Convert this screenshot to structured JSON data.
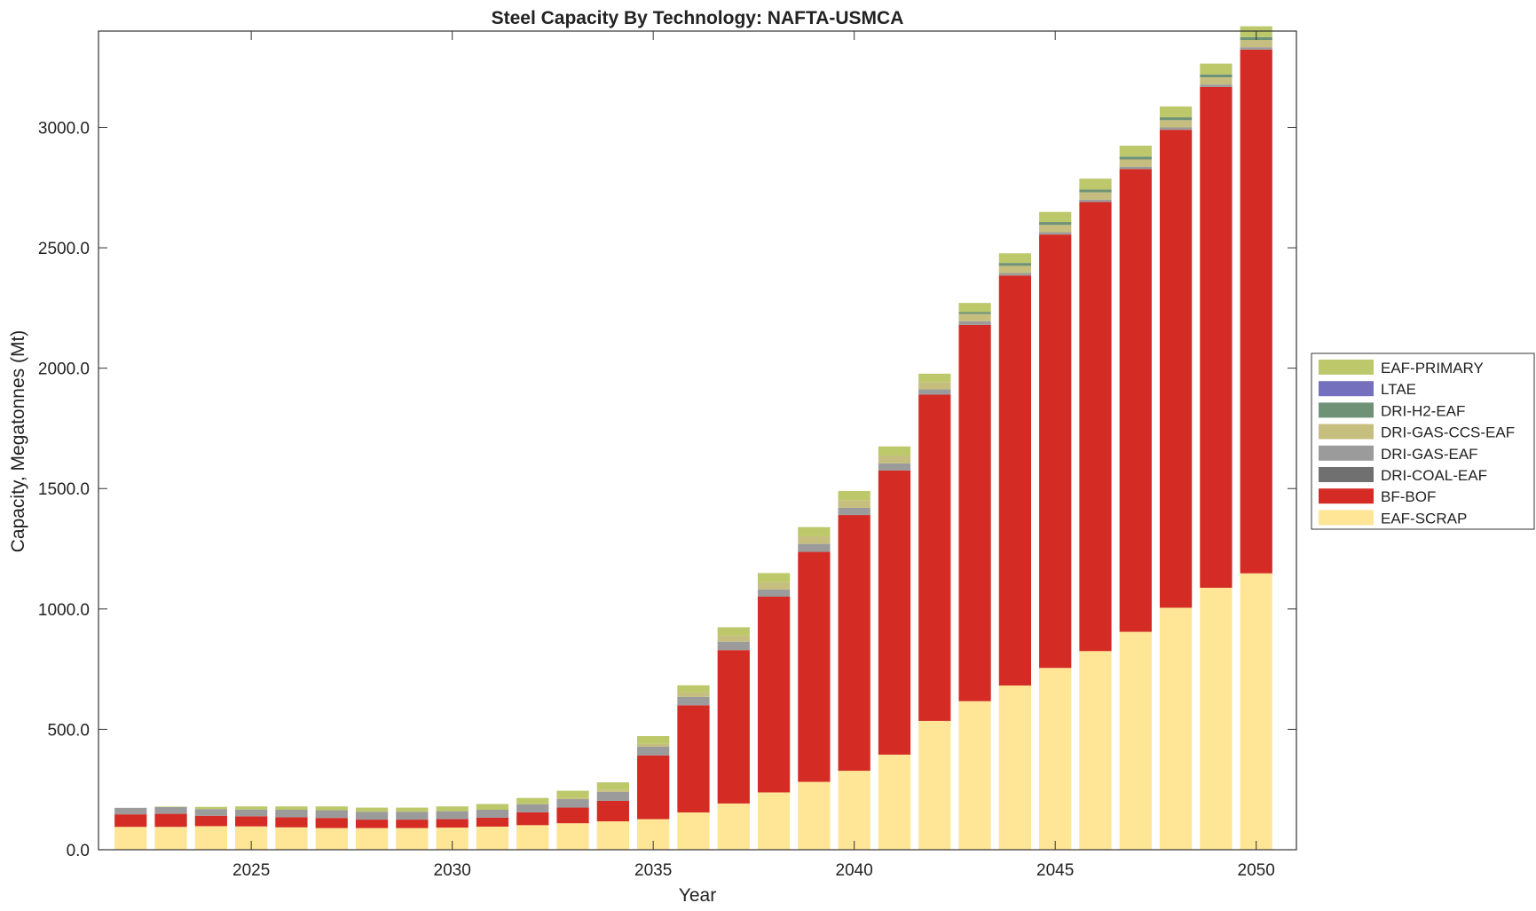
{
  "chart_data": {
    "type": "bar",
    "stacked": true,
    "title": "Steel Capacity By Technology: NAFTA-USMCA",
    "xlabel": "Year",
    "ylabel": "Capacity, Megatonnes (Mt)",
    "xlim": [
      2021.2,
      2051.0
    ],
    "ylim": [
      0,
      3400
    ],
    "xticks": [
      2025,
      2030,
      2035,
      2040,
      2045,
      2050
    ],
    "xtick_labels": [
      "2025",
      "2030",
      "2035",
      "2040",
      "2045",
      "2050"
    ],
    "yticks": [
      0,
      500,
      1000,
      1500,
      2000,
      2500,
      3000
    ],
    "ytick_labels": [
      "0.0",
      "500.0",
      "1000.0",
      "1500.0",
      "2000.0",
      "2500.0",
      "3000.0"
    ],
    "grid": false,
    "legend_position": "right",
    "categories": [
      2022,
      2023,
      2024,
      2025,
      2026,
      2027,
      2028,
      2029,
      2030,
      2031,
      2032,
      2033,
      2034,
      2035,
      2036,
      2037,
      2038,
      2039,
      2040,
      2041,
      2042,
      2043,
      2044,
      2045,
      2046,
      2047,
      2048,
      2049,
      2050
    ],
    "series": [
      {
        "name": "EAF-SCRAP",
        "color": "#FFE596",
        "values": [
          95,
          95,
          98,
          97,
          93,
          90,
          90,
          90,
          92,
          96,
          102,
          110,
          118,
          127,
          155,
          192,
          238,
          282,
          328,
          395,
          535,
          617,
          682,
          755,
          825,
          905,
          1005,
          1088,
          1148
        ]
      },
      {
        "name": "BF-BOF",
        "color": "#D42B24",
        "values": [
          52,
          54,
          43,
          42,
          42,
          42,
          35,
          35,
          35,
          37,
          53,
          65,
          85,
          265,
          445,
          637,
          813,
          955,
          1062,
          1180,
          1355,
          1563,
          1703,
          1800,
          1865,
          1922,
          1985,
          2080,
          2175
        ]
      },
      {
        "name": "DRI-COAL-EAF",
        "color": "#707070",
        "values": [
          0,
          0,
          0,
          0,
          0,
          0,
          0,
          0,
          0,
          0,
          0,
          0,
          0,
          0,
          0,
          0,
          0,
          0,
          0,
          0,
          0,
          0,
          0,
          0,
          0,
          0,
          0,
          0,
          0
        ]
      },
      {
        "name": "DRI-GAS-EAF",
        "color": "#9B9B9B",
        "values": [
          27,
          28,
          28,
          28,
          31,
          32,
          33,
          33,
          33,
          33,
          34,
          35,
          37,
          36,
          35,
          35,
          30,
          33,
          30,
          30,
          22,
          15,
          10,
          10,
          10,
          10,
          10,
          10,
          10
        ]
      },
      {
        "name": "DRI-GAS-CCS-EAF",
        "color": "#C6BE7E",
        "values": [
          0,
          0,
          0,
          0,
          0,
          0,
          0,
          0,
          0,
          0,
          0,
          5,
          8,
          12,
          18,
          25,
          30,
          32,
          32,
          32,
          30,
          30,
          30,
          30,
          30,
          30,
          30,
          30,
          30
        ]
      },
      {
        "name": "DRI-H2-EAF",
        "color": "#6F9277",
        "values": [
          0,
          0,
          0,
          0,
          0,
          0,
          0,
          0,
          0,
          0,
          0,
          0,
          0,
          0,
          0,
          0,
          0,
          0,
          0,
          0,
          0,
          8,
          12,
          12,
          12,
          12,
          12,
          12,
          12
        ]
      },
      {
        "name": "LTAE",
        "color": "#7570BE",
        "values": [
          0,
          0,
          0,
          0,
          0,
          0,
          0,
          0,
          0,
          0,
          0,
          0,
          0,
          0,
          0,
          0,
          0,
          0,
          0,
          0,
          0,
          0,
          0,
          0,
          0,
          0,
          0,
          0,
          0
        ]
      },
      {
        "name": "EAF-PRIMARY",
        "color": "#BCC86A",
        "values": [
          0,
          2,
          9,
          13,
          14,
          16,
          17,
          17,
          20,
          24,
          26,
          30,
          32,
          32,
          30,
          35,
          38,
          38,
          38,
          38,
          35,
          38,
          40,
          42,
          45,
          45,
          45,
          45,
          45
        ]
      }
    ],
    "legend_order": [
      "EAF-PRIMARY",
      "LTAE",
      "DRI-H2-EAF",
      "DRI-GAS-CCS-EAF",
      "DRI-GAS-EAF",
      "DRI-COAL-EAF",
      "BF-BOF",
      "EAF-SCRAP"
    ]
  }
}
